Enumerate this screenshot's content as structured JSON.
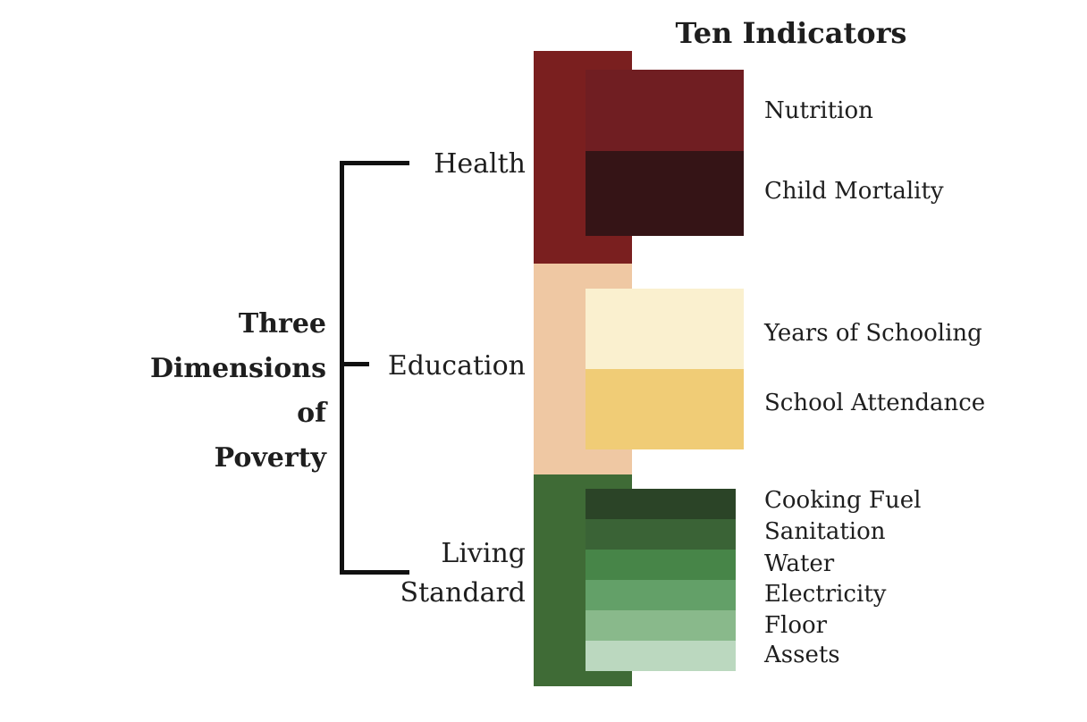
{
  "title": "Ten Indicators",
  "root": {
    "lines": [
      "Three",
      "Dimensions",
      "of",
      "Poverty"
    ]
  },
  "dimensions": [
    {
      "label": "Health",
      "color": "#7a1f1f",
      "indicators": [
        {
          "label": "Nutrition",
          "color": "#701e22"
        },
        {
          "label": "Child Mortality",
          "color": "#351416"
        }
      ]
    },
    {
      "label": "Education",
      "color": "#efc8a3",
      "indicators": [
        {
          "label": "Years of Schooling",
          "color": "#faf0cf"
        },
        {
          "label": "School Attendance",
          "color": "#f0cc76"
        }
      ]
    },
    {
      "label_lines": [
        "Living",
        "Standard"
      ],
      "color": "#3f6b36",
      "indicators": [
        {
          "label": "Cooking Fuel",
          "color": "#2b4427"
        },
        {
          "label": "Sanitation",
          "color": "#3a6336"
        },
        {
          "label": "Water",
          "color": "#478548"
        },
        {
          "label": "Electricity",
          "color": "#63a068"
        },
        {
          "label": "Floor",
          "color": "#89b98b"
        },
        {
          "label": "Assets",
          "color": "#bbd8bf"
        }
      ]
    }
  ]
}
